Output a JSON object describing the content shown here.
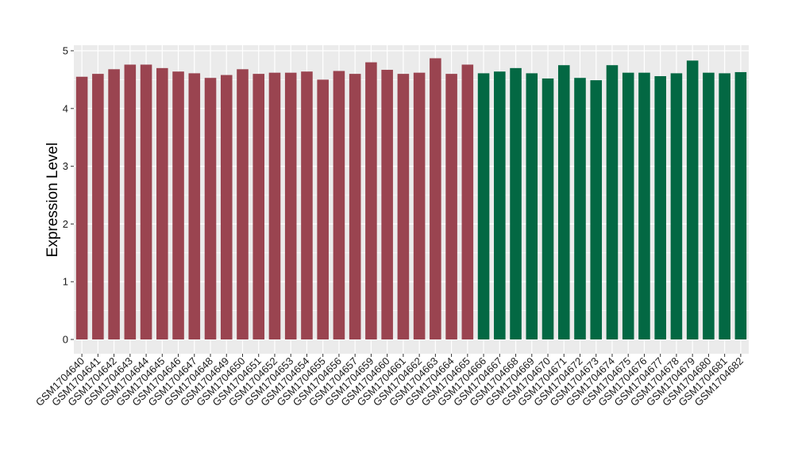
{
  "chart_data": {
    "type": "bar",
    "title": "",
    "xlabel": "",
    "ylabel": "Expression Level",
    "ylim": [
      0,
      5
    ],
    "yticks": [
      0,
      1,
      2,
      3,
      4,
      5
    ],
    "grid": true,
    "legend": "none",
    "categories": [
      "GSM1704640",
      "GSM1704641",
      "GSM1704642",
      "GSM1704643",
      "GSM1704644",
      "GSM1704645",
      "GSM1704646",
      "GSM1704647",
      "GSM1704648",
      "GSM1704649",
      "GSM1704650",
      "GSM1704651",
      "GSM1704652",
      "GSM1704653",
      "GSM1704654",
      "GSM1704655",
      "GSM1704656",
      "GSM1704657",
      "GSM1704659",
      "GSM1704660",
      "GSM1704661",
      "GSM1704662",
      "GSM1704663",
      "GSM1704664",
      "GSM1704665",
      "GSM1704666",
      "GSM1704667",
      "GSM1704668",
      "GSM1704669",
      "GSM1704670",
      "GSM1704671",
      "GSM1704672",
      "GSM1704673",
      "GSM1704674",
      "GSM1704675",
      "GSM1704676",
      "GSM1704677",
      "GSM1704678",
      "GSM1704679",
      "GSM1704680",
      "GSM1704681",
      "GSM1704682"
    ],
    "values": [
      4.55,
      4.6,
      4.68,
      4.76,
      4.76,
      4.7,
      4.64,
      4.61,
      4.53,
      4.58,
      4.68,
      4.6,
      4.62,
      4.62,
      4.64,
      4.5,
      4.65,
      4.6,
      4.8,
      4.67,
      4.6,
      4.62,
      4.87,
      4.6,
      4.76,
      4.61,
      4.64,
      4.7,
      4.61,
      4.52,
      4.75,
      4.53,
      4.49,
      4.75,
      4.62,
      4.62,
      4.56,
      4.61,
      4.83,
      4.62,
      4.61,
      4.63
    ],
    "group_sizes": [
      25,
      17
    ],
    "colors": [
      "#9a4450",
      "#036843"
    ],
    "panel_background": "#ebebeb",
    "grid_color": "#ffffff"
  }
}
